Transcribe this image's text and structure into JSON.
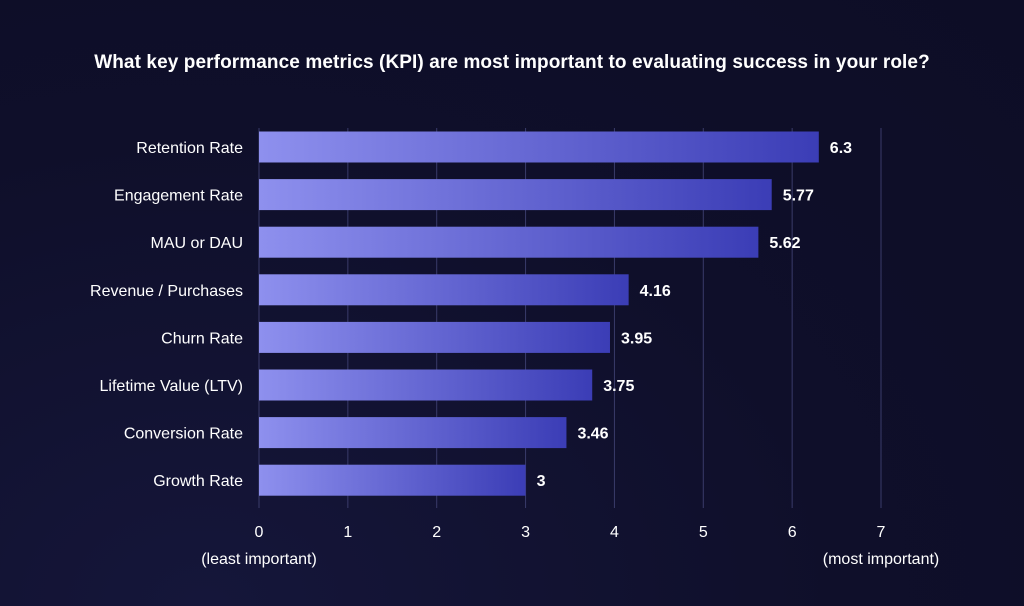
{
  "chart_data": {
    "type": "bar",
    "orientation": "horizontal",
    "title": "What key performance metrics (KPI) are most important to evaluating success in your role?",
    "categories": [
      "Retention Rate",
      "Engagement Rate",
      "MAU or DAU",
      "Revenue / Purchases",
      "Churn Rate",
      "Lifetime Value (LTV)",
      "Conversion Rate",
      "Growth Rate"
    ],
    "values": [
      6.3,
      5.77,
      5.62,
      4.16,
      3.95,
      3.75,
      3.46,
      3
    ],
    "value_labels": [
      "6.3",
      "5.77",
      "5.62",
      "4.16",
      "3.95",
      "3.75",
      "3.46",
      "3"
    ],
    "xlim": [
      0,
      7
    ],
    "xticks": [
      "0",
      "1",
      "2",
      "3",
      "4",
      "5",
      "6",
      "7"
    ],
    "x_min_label": "(least important)",
    "x_max_label": "(most important)",
    "grid": true,
    "colors": {
      "bar_start": "#8e90ee",
      "bar_end": "#3b3db6",
      "background": "#0f0f2a",
      "gridline": "#3a3b6a",
      "text": "#ffffff"
    }
  }
}
